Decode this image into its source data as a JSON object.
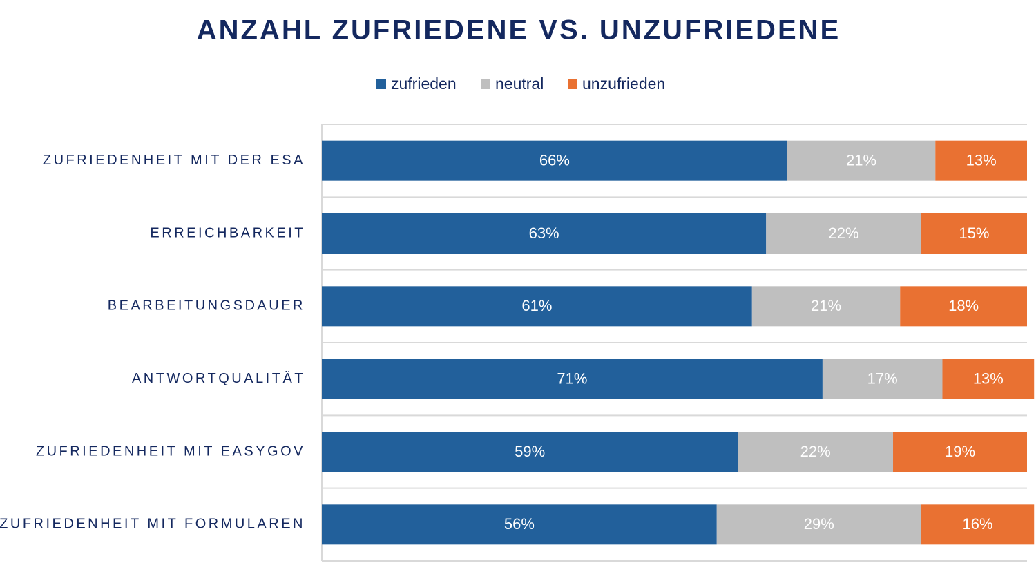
{
  "chart_data": {
    "type": "bar",
    "orientation": "horizontal",
    "stacked": true,
    "title": "ANZAHL ZUFRIEDENE VS. UNZUFRIEDENE",
    "categories": [
      "ZUFRIEDENHEIT MIT DER ESA",
      "ERREICHBARKEIT",
      "BEARBEITUNGSDAUER",
      "ANTWORTQUALITÄT",
      "ZUFRIEDENHEIT MIT EASYGOV",
      "ZUFRIEDENHEIT MIT FORMULAREN"
    ],
    "series": [
      {
        "name": "zufrieden",
        "color": "#22609b",
        "values": [
          66,
          63,
          61,
          71,
          59,
          56
        ],
        "value_labels": [
          "66%",
          "63%",
          "61%",
          "71%",
          "59%",
          "56%"
        ]
      },
      {
        "name": "neutral",
        "color": "#bfbfbf",
        "values": [
          21,
          22,
          21,
          17,
          22,
          29
        ],
        "value_labels": [
          "21%",
          "22%",
          "21%",
          "17%",
          "22%",
          "29%"
        ]
      },
      {
        "name": "unzufrieden",
        "color": "#e97132",
        "values": [
          13,
          15,
          18,
          13,
          19,
          16
        ],
        "value_labels": [
          "13%",
          "15%",
          "18%",
          "13%",
          "19%",
          "16%"
        ]
      }
    ],
    "xlim": [
      0,
      100
    ],
    "legend": "top"
  }
}
